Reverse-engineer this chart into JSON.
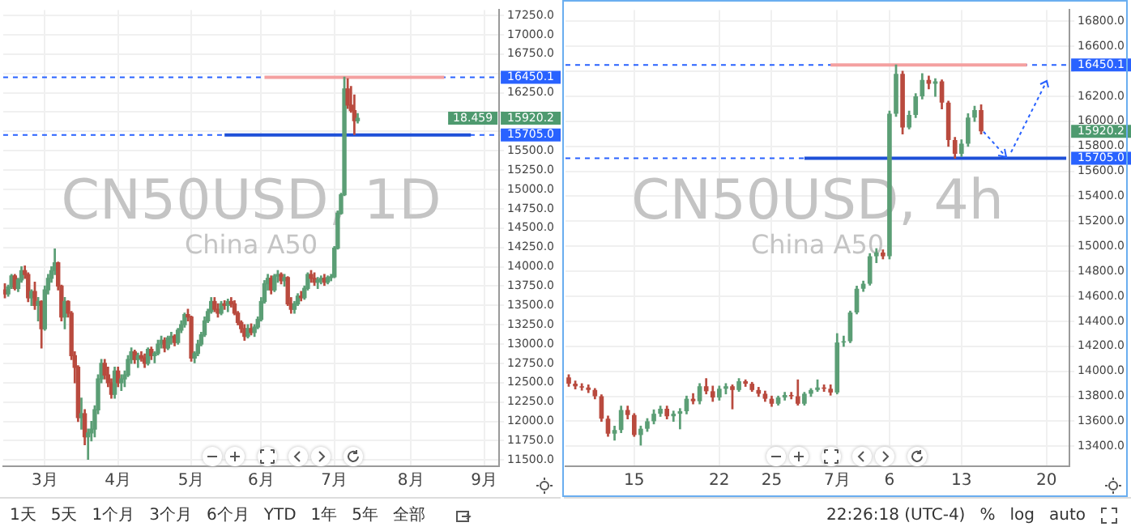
{
  "chart_data": [
    {
      "type": "candlestick",
      "title": "CN50USD, 1D",
      "subtitle": "China A50",
      "grid": true,
      "categories": [
        null,
        null,
        null,
        null,
        null,
        null,
        null,
        null,
        null,
        null,
        null,
        null,
        "3月",
        null,
        null,
        null,
        null,
        null,
        null,
        null,
        null,
        null,
        null,
        null,
        null,
        null,
        null,
        null,
        null,
        null,
        null,
        null,
        null,
        null,
        "4月",
        null,
        null,
        null,
        null,
        null,
        null,
        null,
        null,
        null,
        null,
        null,
        null,
        null,
        null,
        null,
        null,
        null,
        null,
        null,
        null,
        null,
        "5月",
        null,
        null,
        null,
        null,
        null,
        null,
        null,
        null,
        null,
        null,
        null,
        null,
        null,
        null,
        null,
        null,
        null,
        null,
        null,
        null,
        "6月",
        null,
        null,
        null,
        null,
        null,
        null,
        null,
        null,
        null,
        null,
        null,
        null,
        null,
        null,
        null,
        null,
        null,
        null,
        null,
        null,
        null,
        "7月",
        null,
        null,
        null,
        null,
        null,
        null,
        null,
        null,
        null,
        null,
        null,
        null,
        null,
        null,
        null,
        null,
        null,
        null,
        null,
        null,
        null,
        null,
        "8月",
        null,
        null,
        null,
        null,
        null,
        null,
        null,
        null,
        null,
        null,
        null,
        null,
        null,
        null,
        null,
        null,
        null,
        null,
        null,
        null,
        null,
        "9月",
        null,
        null,
        null,
        null
      ],
      "ohlc": [
        [
          13700,
          13780,
          13600,
          13650
        ],
        [
          13650,
          13760,
          13620,
          13740
        ],
        [
          13740,
          13900,
          13720,
          13880
        ],
        [
          13880,
          13900,
          13700,
          13720
        ],
        [
          13720,
          13850,
          13680,
          13830
        ],
        [
          13830,
          14000,
          13800,
          13950
        ],
        [
          13950,
          14010,
          13850,
          13900
        ],
        [
          13900,
          13920,
          13550,
          13600
        ],
        [
          13600,
          13700,
          13500,
          13680
        ],
        [
          13680,
          13800,
          13450,
          13500
        ],
        [
          13500,
          13600,
          13300,
          13550
        ],
        [
          13550,
          13560,
          12950,
          13200
        ],
        [
          13200,
          13750,
          13180,
          13700
        ],
        [
          13700,
          13900,
          13650,
          13850
        ],
        [
          13850,
          14000,
          13800,
          13950
        ],
        [
          13950,
          14230,
          13900,
          14050
        ],
        [
          14050,
          14060,
          13700,
          13750
        ],
        [
          13750,
          13760,
          13300,
          13350
        ],
        [
          13350,
          13600,
          13200,
          13550
        ],
        [
          13550,
          13560,
          13350,
          13400
        ],
        [
          13400,
          13420,
          12800,
          12850
        ],
        [
          12850,
          12900,
          12500,
          12700
        ],
        [
          12700,
          12720,
          12000,
          12050
        ],
        [
          12050,
          12300,
          11900,
          12100
        ],
        [
          12100,
          12150,
          11700,
          11800
        ],
        [
          11800,
          11900,
          11510,
          11850
        ],
        [
          11850,
          12000,
          11750,
          11900
        ],
        [
          11900,
          12200,
          11800,
          12150
        ],
        [
          12150,
          12600,
          12100,
          12550
        ],
        [
          12550,
          12800,
          12500,
          12750
        ],
        [
          12750,
          12800,
          12550,
          12600
        ],
        [
          12600,
          12700,
          12450,
          12500
        ],
        [
          12500,
          12550,
          12300,
          12350
        ],
        [
          12350,
          12700,
          12300,
          12650
        ],
        [
          12650,
          12700,
          12450,
          12500
        ],
        [
          12500,
          12600,
          12400,
          12550
        ],
        [
          12550,
          12650,
          12450,
          12600
        ],
        [
          12600,
          12850,
          12580,
          12800
        ],
        [
          12800,
          12950,
          12750,
          12900
        ],
        [
          12900,
          12920,
          12750,
          12800
        ],
        [
          12800,
          12880,
          12700,
          12850
        ],
        [
          12850,
          12900,
          12780,
          12820
        ],
        [
          12820,
          12870,
          12700,
          12750
        ],
        [
          12750,
          12950,
          12730,
          12930
        ],
        [
          12930,
          12960,
          12800,
          12850
        ],
        [
          12850,
          12900,
          12760,
          12880
        ],
        [
          12880,
          13050,
          12860,
          13000
        ],
        [
          13000,
          13100,
          12950,
          13050
        ],
        [
          13050,
          13080,
          12900,
          12950
        ],
        [
          12950,
          13100,
          12930,
          13080
        ],
        [
          13080,
          13150,
          13000,
          13100
        ],
        [
          13100,
          13120,
          12980,
          13020
        ],
        [
          13020,
          13200,
          13000,
          13180
        ],
        [
          13180,
          13300,
          13150,
          13250
        ],
        [
          13250,
          13400,
          13220,
          13380
        ],
        [
          13380,
          13450,
          13300,
          13350
        ],
        [
          13350,
          13360,
          12780,
          12820
        ],
        [
          12820,
          12900,
          12760,
          12880
        ],
        [
          12880,
          13050,
          12850,
          13000
        ],
        [
          13000,
          13150,
          12980,
          13120
        ],
        [
          13120,
          13350,
          13100,
          13300
        ],
        [
          13300,
          13450,
          13280,
          13420
        ],
        [
          13420,
          13600,
          13400,
          13550
        ],
        [
          13550,
          13600,
          13420,
          13450
        ],
        [
          13450,
          13520,
          13350,
          13400
        ],
        [
          13400,
          13550,
          13380,
          13520
        ],
        [
          13520,
          13560,
          13450,
          13500
        ],
        [
          13500,
          13580,
          13420,
          13550
        ],
        [
          13550,
          13600,
          13480,
          13520
        ],
        [
          13520,
          13560,
          13380,
          13400
        ],
        [
          13400,
          13420,
          13250,
          13280
        ],
        [
          13280,
          13300,
          13150,
          13200
        ],
        [
          13200,
          13250,
          13050,
          13100
        ],
        [
          13100,
          13250,
          13080,
          13200
        ],
        [
          13200,
          13260,
          13120,
          13150
        ],
        [
          13150,
          13250,
          13100,
          13220
        ],
        [
          13220,
          13350,
          13200,
          13320
        ],
        [
          13320,
          13600,
          13300,
          13550
        ],
        [
          13550,
          13820,
          13530,
          13780
        ],
        [
          13780,
          13900,
          13700,
          13850
        ],
        [
          13850,
          13880,
          13650,
          13700
        ],
        [
          13700,
          13900,
          13680,
          13880
        ],
        [
          13880,
          13950,
          13800,
          13900
        ],
        [
          13900,
          13920,
          13780,
          13820
        ],
        [
          13820,
          13900,
          13750,
          13860
        ],
        [
          13860,
          13870,
          13500,
          13520
        ],
        [
          13520,
          13600,
          13400,
          13450
        ],
        [
          13450,
          13550,
          13400,
          13520
        ],
        [
          13520,
          13650,
          13500,
          13620
        ],
        [
          13620,
          13680,
          13560,
          13600
        ],
        [
          13600,
          13750,
          13580,
          13720
        ],
        [
          13720,
          13920,
          13700,
          13900
        ],
        [
          13900,
          13950,
          13800,
          13850
        ],
        [
          13850,
          13920,
          13760,
          13800
        ],
        [
          13800,
          13860,
          13720,
          13830
        ],
        [
          13830,
          13880,
          13780,
          13850
        ],
        [
          13850,
          13900,
          13760,
          13800
        ],
        [
          13800,
          13880,
          13780,
          13860
        ],
        [
          13860,
          13900,
          13820,
          13870
        ],
        [
          13870,
          14260,
          13860,
          14240
        ],
        [
          14240,
          14720,
          14230,
          14690
        ],
        [
          14690,
          14950,
          14680,
          14930
        ],
        [
          14930,
          16450,
          14920,
          16300
        ],
        [
          16300,
          16430,
          16050,
          16090
        ],
        [
          16090,
          16330,
          16000,
          16020
        ],
        [
          16020,
          16220,
          15710,
          15890
        ],
        [
          15890,
          15980,
          15860,
          15920.2
        ],
        null,
        null,
        null,
        null,
        null,
        null,
        null,
        null,
        null,
        null,
        null,
        null,
        null,
        null,
        null,
        null,
        null,
        null,
        null,
        null,
        null,
        null,
        null,
        null,
        null,
        null,
        null,
        null,
        null,
        null,
        null,
        null,
        null,
        null,
        null,
        null,
        null,
        null,
        null,
        null,
        null,
        null
      ],
      "series": [
        {
          "type": "line",
          "color": "#f4a0a0",
          "values": [
            null,
            null,
            null,
            null,
            null,
            null,
            null,
            null,
            null,
            null,
            null,
            null,
            null,
            null,
            null,
            null,
            null,
            null,
            null,
            null,
            null,
            null,
            null,
            null,
            null,
            null,
            null,
            null,
            null,
            null,
            null,
            null,
            null,
            null,
            null,
            null,
            null,
            null,
            null,
            null,
            null,
            null,
            null,
            null,
            null,
            null,
            null,
            null,
            null,
            null,
            null,
            null,
            null,
            null,
            null,
            null,
            null,
            null,
            null,
            null,
            null,
            null,
            null,
            null,
            null,
            null,
            null,
            null,
            null,
            null,
            null,
            null,
            null,
            null,
            null,
            null,
            null,
            null,
            16450,
            16450,
            16450,
            16450,
            16450,
            16450,
            16450,
            16450,
            16450,
            16450,
            16450,
            16450,
            16450,
            16450,
            16450,
            16450,
            16450,
            16450,
            16450,
            16450,
            16450,
            16450,
            16450,
            16450,
            16450,
            16450,
            16450,
            16450,
            16450,
            16450,
            16450,
            16450,
            16450,
            16450,
            16450,
            16450,
            16450,
            16450,
            16450,
            16450,
            16450,
            16450,
            16450,
            16450,
            16450,
            16450,
            16450,
            16450,
            16450,
            16450,
            16450,
            16450,
            16450,
            16450,
            16450,
            null,
            null,
            null,
            null,
            null,
            null,
            null,
            null,
            null,
            null,
            null,
            null,
            null,
            null,
            null,
            null
          ]
        },
        {
          "type": "line",
          "color": "#1e50d8",
          "values": [
            null,
            null,
            null,
            null,
            null,
            null,
            null,
            null,
            null,
            null,
            null,
            null,
            null,
            null,
            null,
            null,
            null,
            null,
            null,
            null,
            null,
            null,
            null,
            null,
            null,
            null,
            null,
            null,
            null,
            null,
            null,
            null,
            null,
            null,
            null,
            null,
            null,
            null,
            null,
            null,
            null,
            null,
            null,
            null,
            null,
            null,
            null,
            null,
            null,
            null,
            null,
            null,
            null,
            null,
            null,
            null,
            null,
            null,
            null,
            null,
            null,
            null,
            null,
            null,
            null,
            null,
            15705,
            15705,
            15705,
            15705,
            15705,
            15705,
            15705,
            15705,
            15705,
            15705,
            15705,
            15705,
            15705,
            15705,
            15705,
            15705,
            15705,
            15705,
            15705,
            15705,
            15705,
            15705,
            15705,
            15705,
            15705,
            15705,
            15705,
            15705,
            15705,
            15705,
            15705,
            15705,
            15705,
            15705,
            15705,
            15705,
            15705,
            15705,
            15705,
            15705,
            15705,
            15705,
            15705,
            15705,
            15705,
            15705,
            15705,
            15705,
            15705,
            15705,
            15705,
            15705,
            15705,
            15705,
            15705,
            15705,
            15705,
            15705,
            15705,
            15705,
            15705,
            15705,
            15705,
            15705,
            15705,
            15705,
            15705,
            15705,
            15705,
            15705,
            15705,
            15705,
            15705,
            15705,
            15705,
            null,
            null,
            null,
            null,
            null,
            null,
            null,
            null
          ]
        }
      ],
      "ylim": [
        11420,
        17320
      ],
      "yticks": [
        {
          "value": 11500,
          "label": "11500.0"
        },
        {
          "value": 11750,
          "label": "11750.0"
        },
        {
          "value": 12000,
          "label": "12000.0"
        },
        {
          "value": 12250,
          "label": "12250.0"
        },
        {
          "value": 12500,
          "label": "12500.0"
        },
        {
          "value": 12750,
          "label": "12750.0"
        },
        {
          "value": 13000,
          "label": "13000.0"
        },
        {
          "value": 13250,
          "label": "13250.0"
        },
        {
          "value": 13500,
          "label": "13500.0"
        },
        {
          "value": 13750,
          "label": "13750.0"
        },
        {
          "value": 14000,
          "label": "14000.0"
        },
        {
          "value": 14250,
          "label": "14250.0"
        },
        {
          "value": 14500,
          "label": "14500.0"
        },
        {
          "value": 14750,
          "label": "14750.0"
        },
        {
          "value": 15000,
          "label": "15000.0"
        },
        {
          "value": 15250,
          "label": "15250.0"
        },
        {
          "value": 15500,
          "label": "15500.0"
        },
        {
          "value": 15750,
          "label": null
        },
        {
          "value": 16000,
          "label": null
        },
        {
          "value": 16250,
          "label": "16250.0"
        },
        {
          "value": 16500,
          "label": null
        },
        {
          "value": 16750,
          "label": "16750.0"
        },
        {
          "value": 17000,
          "label": "17000.0"
        },
        {
          "value": 17250,
          "label": "17250.0"
        }
      ],
      "ref_lines": [
        {
          "axis": "y",
          "value": 16450.1,
          "label": "16450.1",
          "color": "#2962ff",
          "line_style": "dashed"
        },
        {
          "axis": "y",
          "value": 15705.0,
          "label": "15705.0",
          "color": "#2962ff",
          "line_style": "dashed"
        }
      ],
      "annotations": [
        "18.459",
        "15920.2",
        "1天",
        "5天",
        "1个月",
        "3个月",
        "6个月",
        "YTD",
        "1年",
        "5年",
        "全部"
      ]
    },
    {
      "type": "candlestick",
      "title": "CN50USD, 4h",
      "subtitle": "China A50",
      "grid": true,
      "categories": [
        null,
        null,
        null,
        null,
        null,
        null,
        null,
        null,
        null,
        null,
        "15",
        null,
        null,
        null,
        null,
        null,
        null,
        null,
        null,
        null,
        null,
        null,
        null,
        "22",
        null,
        null,
        null,
        null,
        null,
        null,
        null,
        "25",
        null,
        null,
        null,
        null,
        null,
        null,
        null,
        null,
        null,
        "7月",
        null,
        null,
        null,
        null,
        null,
        null,
        null,
        "6",
        null,
        null,
        null,
        null,
        null,
        null,
        null,
        null,
        null,
        null,
        "13",
        null,
        null,
        null,
        null,
        null,
        null,
        null,
        null,
        null,
        null,
        null,
        null,
        "20",
        null,
        null,
        null
      ],
      "ohlc": [
        [
          13950,
          13970,
          13880,
          13900
        ],
        [
          13900,
          13920,
          13860,
          13880
        ],
        [
          13880,
          13900,
          13850,
          13870
        ],
        [
          13870,
          13890,
          13830,
          13850
        ],
        [
          13850,
          13860,
          13780,
          13800
        ],
        [
          13800,
          13810,
          13600,
          13620
        ],
        [
          13620,
          13640,
          13480,
          13500
        ],
        [
          13500,
          13560,
          13450,
          13530
        ],
        [
          13530,
          13720,
          13510,
          13690
        ],
        [
          13690,
          13720,
          13620,
          13650
        ],
        [
          13650,
          13660,
          13480,
          13490
        ],
        [
          13490,
          13560,
          13410,
          13540
        ],
        [
          13540,
          13620,
          13520,
          13600
        ],
        [
          13600,
          13690,
          13580,
          13660
        ],
        [
          13660,
          13720,
          13640,
          13700
        ],
        [
          13700,
          13720,
          13620,
          13640
        ],
        [
          13640,
          13680,
          13600,
          13660
        ],
        [
          13660,
          13700,
          13540,
          13680
        ],
        [
          13680,
          13800,
          13660,
          13780
        ],
        [
          13780,
          13820,
          13740,
          13760
        ],
        [
          13760,
          13900,
          13740,
          13880
        ],
        [
          13880,
          13940,
          13820,
          13840
        ],
        [
          13840,
          13880,
          13760,
          13790
        ],
        [
          13790,
          13880,
          13770,
          13860
        ],
        [
          13860,
          13900,
          13820,
          13880
        ],
        [
          13880,
          13890,
          13700,
          13850
        ],
        [
          13850,
          13940,
          13840,
          13920
        ],
        [
          13920,
          13930,
          13880,
          13900
        ],
        [
          13900,
          13910,
          13840,
          13850
        ],
        [
          13850,
          13870,
          13800,
          13820
        ],
        [
          13820,
          13840,
          13760,
          13780
        ],
        [
          13780,
          13800,
          13720,
          13740
        ],
        [
          13740,
          13800,
          13730,
          13790
        ],
        [
          13790,
          13830,
          13770,
          13810
        ],
        [
          13810,
          13830,
          13780,
          13800
        ],
        [
          13800,
          13930,
          13730,
          13740
        ],
        [
          13740,
          13830,
          13730,
          13820
        ],
        [
          13820,
          13860,
          13800,
          13850
        ],
        [
          13850,
          13930,
          13840,
          13870
        ],
        [
          13870,
          13890,
          13840,
          13860
        ],
        [
          13860,
          13890,
          13810,
          13830
        ],
        [
          13830,
          14300,
          13820,
          14230
        ],
        [
          14230,
          14280,
          14200,
          14240
        ],
        [
          14240,
          14480,
          14230,
          14470
        ],
        [
          14470,
          14680,
          14460,
          14660
        ],
        [
          14660,
          14720,
          14640,
          14700
        ],
        [
          14700,
          14940,
          14690,
          14920
        ],
        [
          14920,
          14980,
          14870,
          14950
        ],
        [
          14950,
          14970,
          14900,
          14920
        ],
        [
          14920,
          16080,
          14900,
          16060
        ],
        [
          16060,
          16450,
          16040,
          16380
        ],
        [
          16380,
          16400,
          15900,
          15950
        ],
        [
          15950,
          16080,
          15940,
          16050
        ],
        [
          16050,
          16220,
          16030,
          16200
        ],
        [
          16200,
          16380,
          16180,
          16330
        ],
        [
          16330,
          16360,
          16260,
          16300
        ],
        [
          16300,
          16340,
          16200,
          16320
        ],
        [
          16320,
          16330,
          16100,
          16150
        ],
        [
          16150,
          16160,
          15800,
          15850
        ],
        [
          15850,
          15870,
          15705,
          15740
        ],
        [
          15740,
          15850,
          15720,
          15820
        ],
        [
          15820,
          16060,
          15800,
          16030
        ],
        [
          16030,
          16120,
          16000,
          16090
        ],
        [
          16090,
          16130,
          15900,
          15920.2
        ],
        null,
        null,
        null,
        null,
        null,
        null,
        null,
        null,
        null,
        null,
        null,
        null,
        null
      ],
      "series": [
        {
          "type": "line",
          "color": "#f4a0a0",
          "values": [
            null,
            null,
            null,
            null,
            null,
            null,
            null,
            null,
            null,
            null,
            null,
            null,
            null,
            null,
            null,
            null,
            null,
            null,
            null,
            null,
            null,
            null,
            null,
            null,
            null,
            null,
            null,
            null,
            null,
            null,
            null,
            null,
            null,
            null,
            null,
            null,
            null,
            null,
            null,
            null,
            16450,
            16450,
            16450,
            16450,
            16450,
            16450,
            16450,
            16450,
            16450,
            16450,
            16450,
            16450,
            16450,
            16450,
            16450,
            16450,
            16450,
            16450,
            16450,
            16450,
            16450,
            16450,
            16450,
            16450,
            16450,
            16450,
            16450,
            16450,
            16450,
            16450,
            16450,
            null,
            null,
            null,
            null,
            null,
            null
          ]
        },
        {
          "type": "line",
          "color": "#1e50d8",
          "values": [
            null,
            null,
            null,
            null,
            null,
            null,
            null,
            null,
            null,
            null,
            null,
            null,
            null,
            null,
            null,
            null,
            null,
            null,
            null,
            null,
            null,
            null,
            null,
            null,
            null,
            null,
            null,
            null,
            null,
            null,
            null,
            null,
            null,
            null,
            null,
            null,
            15705,
            15705,
            15705,
            15705,
            15705,
            15705,
            15705,
            15705,
            15705,
            15705,
            15705,
            15705,
            15705,
            15705,
            15705,
            15705,
            15705,
            15705,
            15705,
            15705,
            15705,
            15705,
            15705,
            15705,
            15705,
            15705,
            15705,
            15705,
            15705,
            15705,
            15705,
            15705,
            15705,
            15705,
            15705,
            15705,
            15705,
            15705,
            15705,
            15705,
            15705
          ]
        }
      ],
      "ylim": [
        13240,
        16890
      ],
      "yticks": [
        {
          "value": 13400,
          "label": "13400.0"
        },
        {
          "value": 13600,
          "label": "13600.0"
        },
        {
          "value": 13800,
          "label": "13800.0"
        },
        {
          "value": 14000,
          "label": "14000.0"
        },
        {
          "value": 14200,
          "label": "14200.0"
        },
        {
          "value": 14400,
          "label": "14400.0"
        },
        {
          "value": 14600,
          "label": "14600.0"
        },
        {
          "value": 14800,
          "label": "14800.0"
        },
        {
          "value": 15000,
          "label": "15000.0"
        },
        {
          "value": 15200,
          "label": "15200.0"
        },
        {
          "value": 15400,
          "label": "15400.0"
        },
        {
          "value": 15600,
          "label": "15600.0"
        },
        {
          "value": 15800,
          "label": "15800.0"
        },
        {
          "value": 16000,
          "label": "16000.0"
        },
        {
          "value": 16200,
          "label": "16200.0"
        },
        {
          "value": 16400,
          "label": null
        },
        {
          "value": 16600,
          "label": "16600.0"
        },
        {
          "value": 16800,
          "label": "16800.0"
        }
      ],
      "ref_lines": [
        {
          "axis": "y",
          "value": 16450.1,
          "label": "16450.1",
          "color": "#2962ff",
          "line_style": "dashed"
        },
        {
          "axis": "y",
          "value": 15705.0,
          "label": "15705.0",
          "color": "#2962ff",
          "line_style": "dashed"
        }
      ],
      "annotations": [
        "15920.2",
        "22:26:18 (UTC-4)",
        "%",
        "log",
        "auto"
      ]
    }
  ]
}
